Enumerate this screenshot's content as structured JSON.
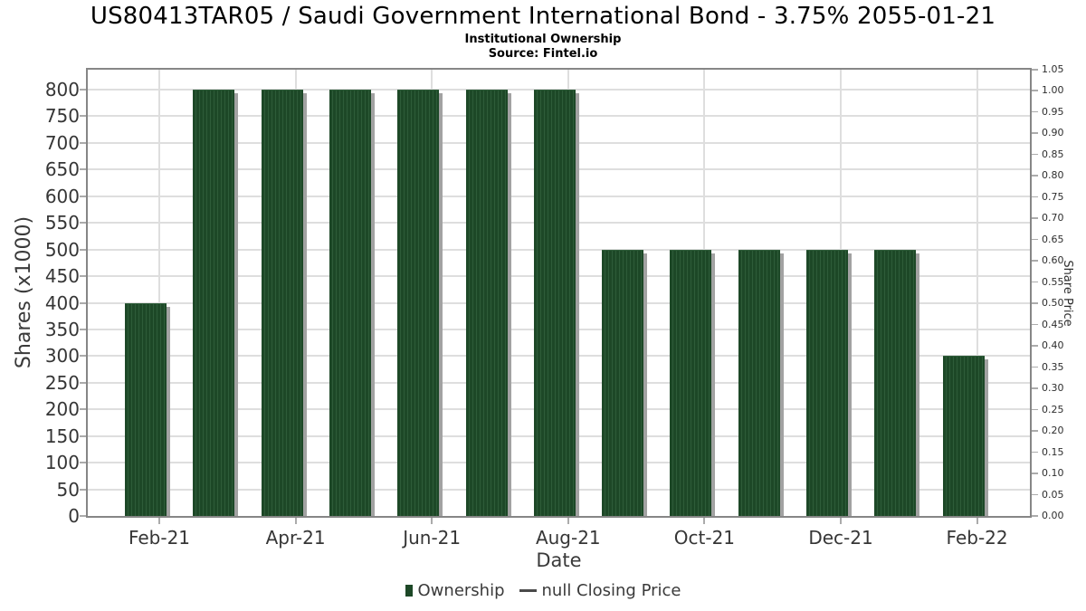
{
  "header": {
    "title": "US80413TAR05 / Saudi Government International Bond - 3.75% 2055-01-21",
    "subtitle": "Institutional Ownership",
    "source": "Source: Fintel.io"
  },
  "chart_data": {
    "type": "bar",
    "title": "US80413TAR05 / Saudi Government International Bond - 3.75% 2055-01-21",
    "subtitle": "Institutional Ownership",
    "source": "Source: Fintel.io",
    "series": [
      {
        "name": "Ownership",
        "values": [
          400,
          800,
          800,
          800,
          800,
          800,
          800,
          500,
          500,
          500,
          500,
          500,
          300
        ]
      }
    ],
    "x_tick_labels": [
      "Feb-21",
      "Apr-21",
      "Jun-21",
      "Aug-21",
      "Oct-21",
      "Dec-21",
      "Feb-22"
    ],
    "bars_per_labeled_tick": 2,
    "xlabel": "Date",
    "ylabel_left": "Shares (x1000)",
    "ylabel_right": "Share Price",
    "left_ticks": [
      0,
      50,
      100,
      150,
      200,
      250,
      300,
      350,
      400,
      450,
      500,
      550,
      600,
      650,
      700,
      750,
      800
    ],
    "right_ticks": [
      "0.00",
      "0.05",
      "0.10",
      "0.15",
      "0.20",
      "0.25",
      "0.30",
      "0.35",
      "0.40",
      "0.45",
      "0.50",
      "0.55",
      "0.60",
      "0.65",
      "0.70",
      "0.75",
      "0.80",
      "0.85",
      "0.90",
      "0.95",
      "1.00",
      "1.05"
    ],
    "ylim_left": [
      0,
      845
    ],
    "ylim_right": [
      0,
      1.05
    ],
    "grid": true,
    "legend_position": "bottom",
    "colors": {
      "bar": "#1d4827",
      "bar_stripe": "#2e5c39",
      "bar_shadow": "#a2a2a2",
      "gridline": "#dedede",
      "frame": "#868686",
      "text": "#363636"
    }
  },
  "legend": {
    "ownership_label": "Ownership",
    "price_label": "null Closing Price"
  }
}
